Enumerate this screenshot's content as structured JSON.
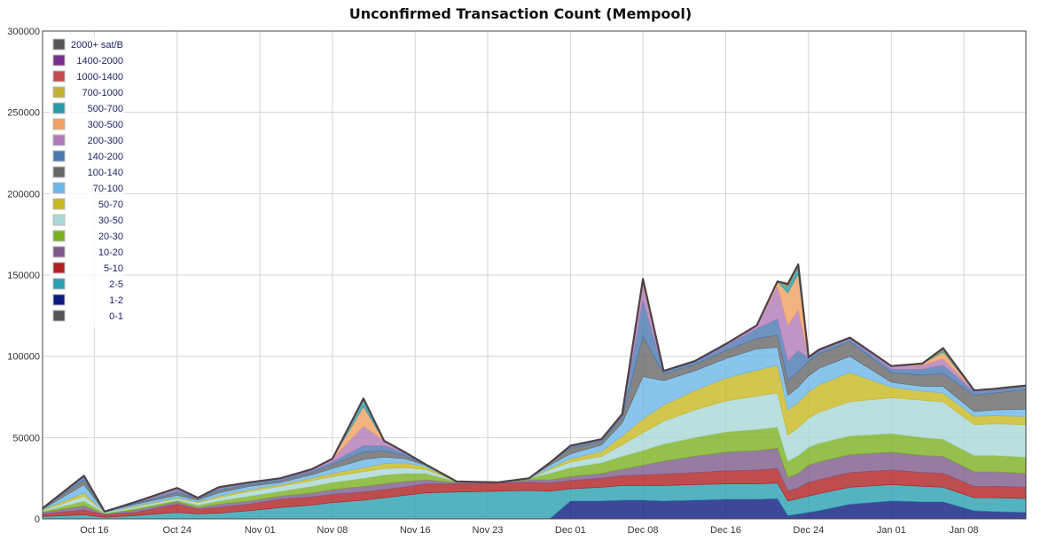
{
  "chart_data": {
    "type": "area",
    "title": "Unconfirmed Transaction Count (Mempool)",
    "xlabel": "",
    "ylabel": "",
    "x_range": [
      "2017-10-11",
      "2018-01-14"
    ],
    "ylim": [
      0,
      300000
    ],
    "y_ticks": [
      0,
      50000,
      100000,
      150000,
      200000,
      250000,
      300000
    ],
    "x_ticks": [
      {
        "label": "Oct 16",
        "date": "2017-10-16"
      },
      {
        "label": "Oct 24",
        "date": "2017-10-24"
      },
      {
        "label": "Nov 01",
        "date": "2017-11-01"
      },
      {
        "label": "Nov 08",
        "date": "2017-11-08"
      },
      {
        "label": "Nov 16",
        "date": "2017-11-16"
      },
      {
        "label": "Nov 23",
        "date": "2017-11-23"
      },
      {
        "label": "Dec 01",
        "date": "2017-12-01"
      },
      {
        "label": "Dec 08",
        "date": "2017-12-08"
      },
      {
        "label": "Dec 16",
        "date": "2017-12-16"
      },
      {
        "label": "Dec 24",
        "date": "2017-12-24"
      },
      {
        "label": "Jan 01",
        "date": "2018-01-01"
      },
      {
        "label": "Jan 08",
        "date": "2018-01-08"
      }
    ],
    "grid": true,
    "legend_position": "top-left",
    "stacked": true,
    "x": [
      "2017-10-11",
      "2017-10-15",
      "2017-10-17",
      "2017-10-20",
      "2017-10-24",
      "2017-10-26",
      "2017-10-28",
      "2017-10-31",
      "2017-11-03",
      "2017-11-06",
      "2017-11-08",
      "2017-11-11",
      "2017-11-13",
      "2017-11-15",
      "2017-11-17",
      "2017-11-20",
      "2017-11-24",
      "2017-11-27",
      "2017-11-29",
      "2017-12-01",
      "2017-12-04",
      "2017-12-06",
      "2017-12-08",
      "2017-12-10",
      "2017-12-13",
      "2017-12-16",
      "2017-12-19",
      "2017-12-21",
      "2017-12-22",
      "2017-12-23",
      "2017-12-24",
      "2017-12-25",
      "2017-12-28",
      "2018-01-01",
      "2018-01-04",
      "2018-01-06",
      "2018-01-09",
      "2018-01-11",
      "2018-01-14"
    ],
    "series": [
      {
        "name": "0-1",
        "color": "#555555",
        "values": [
          0,
          0,
          0,
          0,
          0,
          0,
          0,
          0,
          0,
          0,
          0,
          0,
          0,
          0,
          0,
          0,
          0,
          0,
          0,
          0,
          0,
          0,
          0,
          0,
          0,
          0,
          0,
          0,
          0,
          0,
          0,
          0,
          0,
          0,
          0,
          0,
          0,
          0,
          0
        ]
      },
      {
        "name": "1-2",
        "color": "#0d1a80",
        "values": [
          0,
          0,
          0,
          0,
          0,
          0,
          0,
          0,
          0,
          0,
          0,
          0,
          0,
          0,
          0,
          0,
          0,
          0,
          0,
          11000,
          11000,
          11500,
          11500,
          11000,
          11500,
          12000,
          12000,
          12500,
          2000,
          3000,
          4000,
          5000,
          9000,
          11000,
          10500,
          10500,
          5000,
          4500,
          4000
        ]
      },
      {
        "name": "2-5",
        "color": "#2aa0b0",
        "values": [
          1500,
          2500,
          1000,
          2000,
          4000,
          3000,
          3500,
          5000,
          7000,
          8500,
          10000,
          11500,
          13000,
          14500,
          16000,
          16500,
          17000,
          17500,
          17000,
          7500,
          8500,
          9000,
          9000,
          9500,
          9500,
          9500,
          9500,
          9500,
          9000,
          9500,
          10000,
          10500,
          10500,
          10000,
          9500,
          9000,
          8000,
          8500,
          8500
        ]
      },
      {
        "name": "5-10",
        "color": "#b02020",
        "values": [
          1500,
          3000,
          1500,
          2000,
          5000,
          3000,
          3500,
          4000,
          5000,
          5000,
          5000,
          5000,
          5000,
          5000,
          5500,
          5000,
          5000,
          5000,
          5000,
          5000,
          5500,
          6000,
          6500,
          7000,
          7500,
          8000,
          8500,
          9000,
          6000,
          6500,
          8500,
          8500,
          9000,
          9000,
          8500,
          8500,
          7000,
          7000,
          7000
        ]
      },
      {
        "name": "10-20",
        "color": "#7d5a8a",
        "values": [
          1000,
          2500,
          500,
          1500,
          1500,
          1000,
          2000,
          2000,
          2000,
          2500,
          3000,
          3500,
          3500,
          3500,
          2500,
          1000,
          500,
          1500,
          2000,
          2500,
          3000,
          4000,
          6000,
          8000,
          10000,
          11500,
          12000,
          12500,
          8500,
          9000,
          10500,
          11000,
          11000,
          11000,
          10500,
          10500,
          9000,
          9000,
          8500
        ]
      },
      {
        "name": "20-30",
        "color": "#7ab020",
        "values": [
          500,
          3000,
          500,
          1000,
          1000,
          1500,
          2000,
          3000,
          3000,
          4000,
          4500,
          5000,
          5500,
          5000,
          4000,
          500,
          0,
          1000,
          4000,
          5500,
          6500,
          8000,
          9000,
          10500,
          11500,
          12500,
          13000,
          13000,
          10000,
          11000,
          11000,
          11500,
          11500,
          11500,
          11000,
          10500,
          10000,
          10000,
          10000
        ]
      },
      {
        "name": "30-50",
        "color": "#a9d7d7",
        "values": [
          500,
          3000,
          500,
          1000,
          1000,
          1500,
          2000,
          3000,
          3000,
          3500,
          3500,
          4000,
          4000,
          3500,
          2500,
          0,
          0,
          0,
          2000,
          3500,
          4000,
          7000,
          11000,
          14000,
          17000,
          19000,
          20500,
          21000,
          16000,
          17000,
          18000,
          19000,
          21000,
          22000,
          23000,
          23000,
          19000,
          19500,
          20000
        ]
      },
      {
        "name": "50-70",
        "color": "#c8b820",
        "values": [
          500,
          2000,
          0,
          500,
          500,
          500,
          1000,
          1000,
          1000,
          1500,
          2000,
          2500,
          3000,
          3000,
          1500,
          0,
          0,
          0,
          1000,
          2000,
          3000,
          5500,
          8500,
          10000,
          12000,
          14000,
          16000,
          17000,
          15500,
          15500,
          16000,
          17000,
          18000,
          6500,
          5500,
          5500,
          5000,
          5000,
          5000
        ]
      },
      {
        "name": "70-100",
        "color": "#6bb5e8",
        "values": [
          500,
          5000,
          500,
          1000,
          1500,
          1000,
          2000,
          2000,
          1500,
          2000,
          3000,
          5000,
          4000,
          2500,
          1000,
          0,
          0,
          0,
          2000,
          3000,
          4000,
          8000,
          26000,
          15000,
          12000,
          12000,
          13000,
          11000,
          9000,
          9500,
          10000,
          10000,
          10000,
          3000,
          3000,
          4000,
          3000,
          3500,
          4500
        ]
      },
      {
        "name": "100-140",
        "color": "#666666",
        "values": [
          500,
          3000,
          0,
          500,
          1500,
          1000,
          1500,
          1000,
          1000,
          1500,
          2500,
          4500,
          4000,
          2000,
          500,
          0,
          0,
          0,
          1500,
          3500,
          2000,
          3500,
          25000,
          4000,
          4000,
          5000,
          6500,
          7500,
          9000,
          9500,
          9000,
          9000,
          9000,
          6000,
          7000,
          8000,
          10000,
          10500,
          12000
        ]
      },
      {
        "name": "140-200",
        "color": "#4a78b0",
        "values": [
          0,
          2000,
          0,
          500,
          1500,
          500,
          1000,
          1000,
          1000,
          1000,
          1500,
          4000,
          3000,
          1500,
          0,
          0,
          0,
          0,
          0,
          1000,
          1000,
          1000,
          22000,
          1500,
          1500,
          3000,
          6000,
          10000,
          12000,
          13000,
          2000,
          1500,
          1500,
          2000,
          3500,
          5000,
          2000,
          2000,
          2000
        ]
      },
      {
        "name": "200-300",
        "color": "#b07ab8",
        "values": [
          0,
          500,
          0,
          500,
          1500,
          0,
          1000,
          500,
          500,
          1000,
          2000,
          12000,
          3000,
          500,
          0,
          0,
          0,
          0,
          0,
          500,
          500,
          1000,
          9000,
          500,
          500,
          1000,
          2000,
          20000,
          22000,
          25000,
          500,
          1000,
          1000,
          2000,
          2500,
          4000,
          1000,
          500,
          500
        ]
      },
      {
        "name": "300-500",
        "color": "#f0a060",
        "values": [
          0,
          0,
          0,
          0,
          0,
          0,
          0,
          0,
          0,
          0,
          0,
          12000,
          0,
          0,
          0,
          0,
          0,
          0,
          0,
          0,
          0,
          0,
          1500,
          0,
          0,
          0,
          0,
          3000,
          20000,
          22000,
          0,
          0,
          0,
          0,
          1000,
          4000,
          0,
          0,
          0
        ]
      },
      {
        "name": "500-700",
        "color": "#2a9aa8",
        "values": [
          0,
          0,
          0,
          0,
          0,
          0,
          0,
          0,
          0,
          0,
          0,
          4000,
          0,
          0,
          0,
          0,
          0,
          0,
          0,
          0,
          0,
          0,
          1000,
          0,
          0,
          0,
          0,
          0,
          4000,
          4500,
          0,
          0,
          0,
          0,
          0,
          1000,
          0,
          0,
          0
        ]
      },
      {
        "name": "700-1000",
        "color": "#c2b032",
        "values": [
          0,
          0,
          0,
          0,
          0,
          0,
          0,
          0,
          0,
          0,
          0,
          500,
          0,
          0,
          0,
          0,
          0,
          0,
          0,
          0,
          0,
          0,
          500,
          0,
          0,
          0,
          0,
          0,
          500,
          500,
          0,
          0,
          0,
          0,
          0,
          500,
          0,
          0,
          0
        ]
      },
      {
        "name": "1000-1400",
        "color": "#c44b4b",
        "values": [
          0,
          0,
          0,
          0,
          0,
          0,
          0,
          0,
          0,
          0,
          0,
          0,
          0,
          0,
          0,
          0,
          0,
          0,
          0,
          0,
          0,
          0,
          500,
          0,
          0,
          0,
          0,
          0,
          500,
          500,
          0,
          0,
          0,
          0,
          0,
          500,
          0,
          0,
          0
        ]
      },
      {
        "name": "1400-2000",
        "color": "#7a2e8e",
        "values": [
          0,
          0,
          0,
          0,
          0,
          0,
          0,
          0,
          0,
          0,
          0,
          0,
          0,
          0,
          0,
          0,
          0,
          0,
          0,
          0,
          0,
          0,
          0,
          0,
          0,
          0,
          0,
          0,
          0,
          0,
          0,
          0,
          0,
          0,
          0,
          0,
          0,
          0,
          0
        ]
      },
      {
        "name": "2000+ sat/B",
        "color": "#555555",
        "values": [
          0,
          0,
          0,
          0,
          0,
          0,
          0,
          0,
          0,
          0,
          0,
          500,
          0,
          0,
          0,
          0,
          0,
          0,
          0,
          0,
          0,
          0,
          500,
          0,
          0,
          0,
          0,
          0,
          500,
          500,
          0,
          0,
          0,
          0,
          0,
          500,
          0,
          0,
          0
        ]
      }
    ]
  }
}
